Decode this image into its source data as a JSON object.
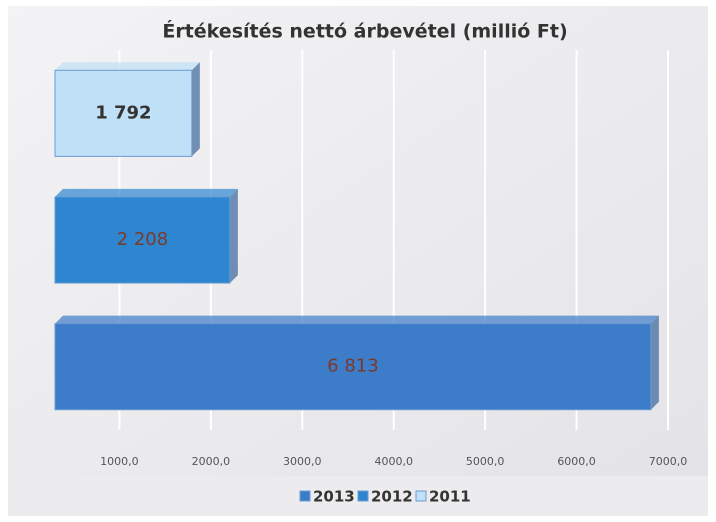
{
  "chart_data": {
    "type": "bar",
    "orientation": "horizontal",
    "title": "Értékesítés nettó árbevétel (millió Ft)",
    "categories": [
      null
    ],
    "series": [
      {
        "name": "2013",
        "color": "#3d7cc9",
        "values": [
          6813
        ],
        "value_labels": [
          "6 813"
        ]
      },
      {
        "name": "2012",
        "color": "#2f86d0",
        "values": [
          2208
        ],
        "value_labels": [
          "2 208"
        ]
      },
      {
        "name": "2011",
        "color": "#bfe0f7",
        "values": [
          1792
        ],
        "value_labels": [
          "1 792"
        ]
      }
    ],
    "xlim": [
      0,
      7000
    ],
    "xticks": [
      {
        "value": 1000,
        "label": "1000,0"
      },
      {
        "value": 2000,
        "label": "2000,0"
      },
      {
        "value": 3000,
        "label": "3000,0"
      },
      {
        "value": 4000,
        "label": "4000,0"
      },
      {
        "value": 5000,
        "label": "5000,0"
      },
      {
        "value": 6000,
        "label": "6000,0"
      },
      {
        "value": 7000,
        "label": "7000,0"
      }
    ],
    "grid": true,
    "legend": "bottom"
  }
}
